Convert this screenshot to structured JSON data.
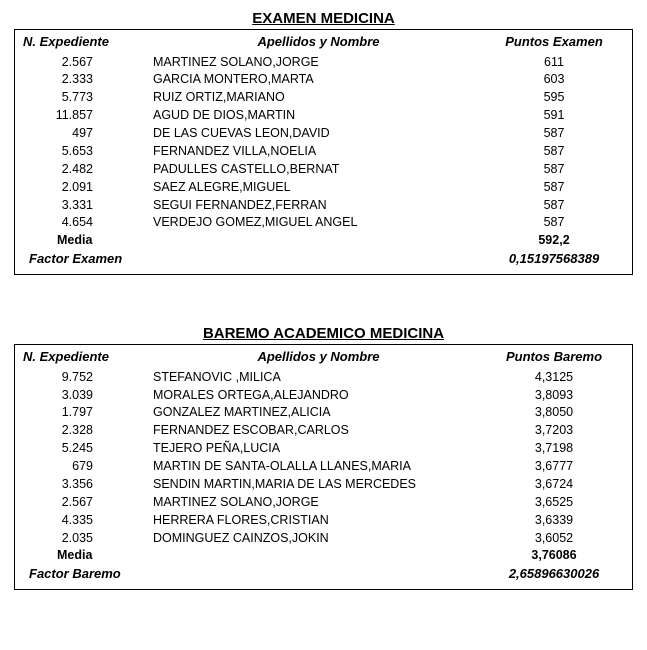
{
  "sections": [
    {
      "title": "EXAMEN MEDICINA",
      "columns": {
        "exp": "N. Expediente",
        "name": "Apellidos y Nombre",
        "pts": "Puntos Examen"
      },
      "rows": [
        {
          "exp": "2.567",
          "name": "MARTINEZ SOLANO,JORGE",
          "pts": "611"
        },
        {
          "exp": "2.333",
          "name": "GARCIA MONTERO,MARTA",
          "pts": "603"
        },
        {
          "exp": "5.773",
          "name": "RUIZ ORTIZ,MARIANO",
          "pts": "595"
        },
        {
          "exp": "11.857",
          "name": "AGUD DE DIOS,MARTIN",
          "pts": "591"
        },
        {
          "exp": "497",
          "name": "DE LAS CUEVAS LEON,DAVID",
          "pts": "587"
        },
        {
          "exp": "5.653",
          "name": "FERNANDEZ VILLA,NOELIA",
          "pts": "587"
        },
        {
          "exp": "2.482",
          "name": "PADULLES CASTELLO,BERNAT",
          "pts": "587"
        },
        {
          "exp": "2.091",
          "name": "SAEZ ALEGRE,MIGUEL",
          "pts": "587"
        },
        {
          "exp": "3.331",
          "name": "SEGUI FERNANDEZ,FERRAN",
          "pts": "587"
        },
        {
          "exp": "4.654",
          "name": "VERDEJO GOMEZ,MIGUEL ANGEL",
          "pts": "587"
        }
      ],
      "media": {
        "label": "Media",
        "value": "592,2"
      },
      "factor": {
        "label": "Factor Examen",
        "value": "0,15197568389"
      }
    },
    {
      "title": "BAREMO ACADEMICO MEDICINA",
      "columns": {
        "exp": "N. Expediente",
        "name": "Apellidos y Nombre",
        "pts": "Puntos Baremo"
      },
      "rows": [
        {
          "exp": "9.752",
          "name": "STEFANOVIC ,MILICA",
          "pts": "4,3125"
        },
        {
          "exp": "3.039",
          "name": "MORALES ORTEGA,ALEJANDRO",
          "pts": "3,8093"
        },
        {
          "exp": "1.797",
          "name": "GONZALEZ MARTINEZ,ALICIA",
          "pts": "3,8050"
        },
        {
          "exp": "2.328",
          "name": "FERNANDEZ ESCOBAR,CARLOS",
          "pts": "3,7203"
        },
        {
          "exp": "5.245",
          "name": "TEJERO PEÑA,LUCIA",
          "pts": "3,7198"
        },
        {
          "exp": "679",
          "name": "MARTIN DE SANTA-OLALLA LLANES,MARIA",
          "pts": "3,6777"
        },
        {
          "exp": "3.356",
          "name": "SENDIN MARTIN,MARIA DE LAS MERCEDES",
          "pts": "3,6724"
        },
        {
          "exp": "2.567",
          "name": "MARTINEZ SOLANO,JORGE",
          "pts": "3,6525"
        },
        {
          "exp": "4.335",
          "name": "HERRERA FLORES,CRISTIAN",
          "pts": "3,6339"
        },
        {
          "exp": "2.035",
          "name": "DOMINGUEZ CAINZOS,JOKIN",
          "pts": "3,6052"
        }
      ],
      "media": {
        "label": "Media",
        "value": "3,76086"
      },
      "factor": {
        "label": "Factor Baremo",
        "value": "2,65896630026"
      }
    }
  ]
}
